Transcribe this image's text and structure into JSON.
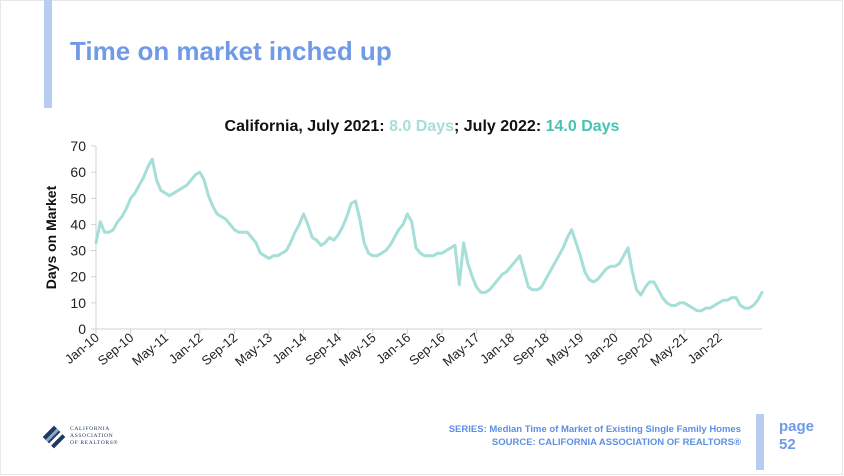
{
  "slide": {
    "title": "Time on market inched up",
    "subtitle_prefix": "California, July 2021: ",
    "subtitle_value_2021": "8.0 Days",
    "subtitle_mid": "; July 2022: ",
    "subtitle_value_2022": "14.0 Days",
    "footer_series": "SERIES: Median Time of Market of Existing Single Family Homes",
    "footer_source": "SOURCE: CALIFORNIA ASSOCIATION OF REALTORS®",
    "page_word": "page",
    "page_number": "52",
    "logo_lines": [
      "CALIFORNIA",
      "ASSOCIATION",
      "OF REALTORS®"
    ]
  },
  "colors": {
    "title": "#6f9ae8",
    "line": "#a6ded8",
    "value_2021": "#a6ded8",
    "value_2022": "#46c3b2",
    "accent_bar": "#b9cdf0",
    "footer": "#5d8fe3"
  },
  "chart_data": {
    "type": "line",
    "ylabel": "Days on Market",
    "xlabel": "",
    "ylim": [
      0,
      70
    ],
    "yticks": [
      0,
      10,
      20,
      30,
      40,
      50,
      60,
      70
    ],
    "grid": false,
    "legend": "none",
    "x_start": "Jan-10",
    "x_end": "Jul-22",
    "xtick_labels": [
      "Jan-10",
      "Sep-10",
      "May-11",
      "Jan-12",
      "Sep-12",
      "May-13",
      "Jan-14",
      "Sep-14",
      "May-15",
      "Jan-16",
      "Sep-16",
      "May-17",
      "Jan-18",
      "Sep-18",
      "May-19",
      "Jan-20",
      "Sep-20",
      "May-21",
      "Jan-22"
    ],
    "series": [
      {
        "values": [
          33,
          41,
          37,
          37,
          38,
          41,
          43,
          46,
          50,
          52,
          55,
          58,
          62,
          65,
          57,
          53,
          52,
          51,
          52,
          53,
          54,
          55,
          57,
          59,
          60,
          57,
          51,
          47,
          44,
          43,
          42,
          40,
          38,
          37,
          37,
          37,
          35,
          33,
          29,
          28,
          27,
          28,
          28,
          29,
          30,
          33,
          37,
          40,
          44,
          40,
          35,
          34,
          32,
          33,
          35,
          34,
          36,
          39,
          43,
          48,
          49,
          42,
          33,
          29,
          28,
          28,
          29,
          30,
          32,
          35,
          38,
          40,
          44,
          41,
          31,
          29,
          28,
          28,
          28,
          29,
          29,
          30,
          31,
          32,
          17,
          33,
          25,
          20,
          16,
          14,
          14,
          15,
          17,
          19,
          21,
          22,
          24,
          26,
          28,
          22,
          16,
          15,
          15,
          16,
          19,
          22,
          25,
          28,
          31,
          35,
          38,
          33,
          28,
          22,
          19,
          18,
          19,
          21,
          23,
          24,
          24,
          25,
          28,
          31,
          22,
          15,
          13,
          16,
          18,
          18,
          15,
          12,
          10,
          9,
          9,
          10,
          10,
          9,
          8,
          7,
          7,
          8,
          8,
          9,
          10,
          11,
          11,
          12,
          12,
          9,
          8,
          8,
          9,
          11,
          14
        ]
      }
    ]
  }
}
